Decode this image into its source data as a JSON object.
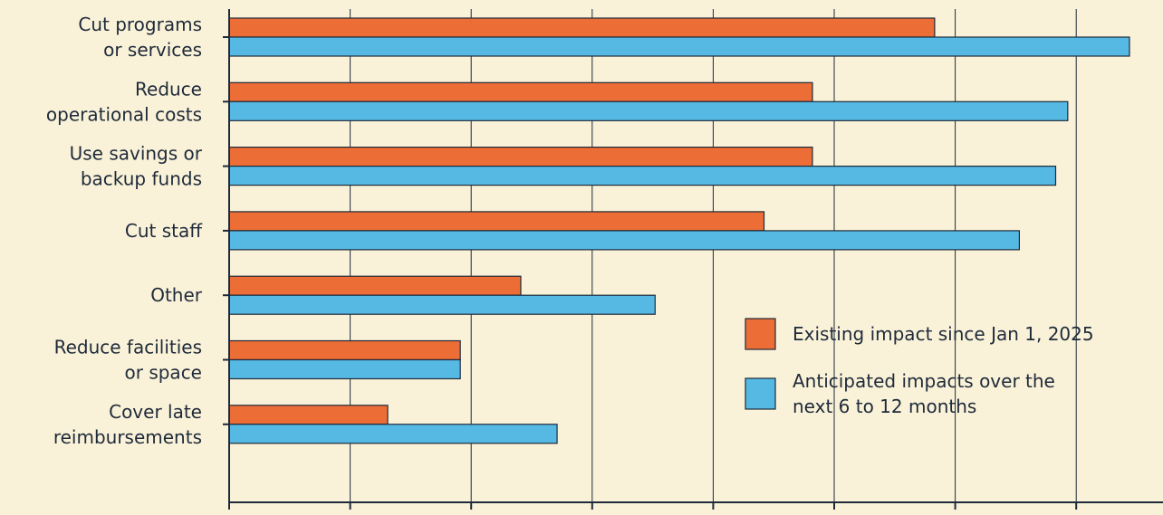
{
  "chart_data": {
    "type": "bar",
    "orientation": "horizontal",
    "title": "",
    "xlabel": "",
    "ylabel": "",
    "categories": [
      [
        "Cut programs",
        "or services"
      ],
      [
        "Reduce",
        "operational costs"
      ],
      [
        "Use savings or",
        "backup funds"
      ],
      [
        "Cut staff"
      ],
      [
        "Other"
      ],
      [
        "Reduce facilities",
        "or space"
      ],
      [
        "Cover late",
        "reimbursements"
      ]
    ],
    "series": [
      {
        "name": "Existing impact since Jan 1, 2025",
        "color": "#ec6d35",
        "values": [
          58.3,
          48.2,
          48.2,
          44.2,
          24.1,
          19.1,
          13.1
        ]
      },
      {
        "name": "Anticipated impacts over the next 6 to 12 months",
        "name_lines": [
          "Anticipated impacts over the",
          "next 6 to 12 months"
        ],
        "color": "#55b9e4",
        "values": [
          74.4,
          69.3,
          68.3,
          65.3,
          35.2,
          19.1,
          27.1
        ]
      }
    ],
    "xlim": [
      0,
      75
    ],
    "xticks": [
      0,
      10,
      20,
      30,
      40,
      50,
      60,
      70
    ],
    "grid": "vertical",
    "legend_position": "bottom-right",
    "axis_color": "#1e2a3a",
    "background": "#faf2d8"
  }
}
